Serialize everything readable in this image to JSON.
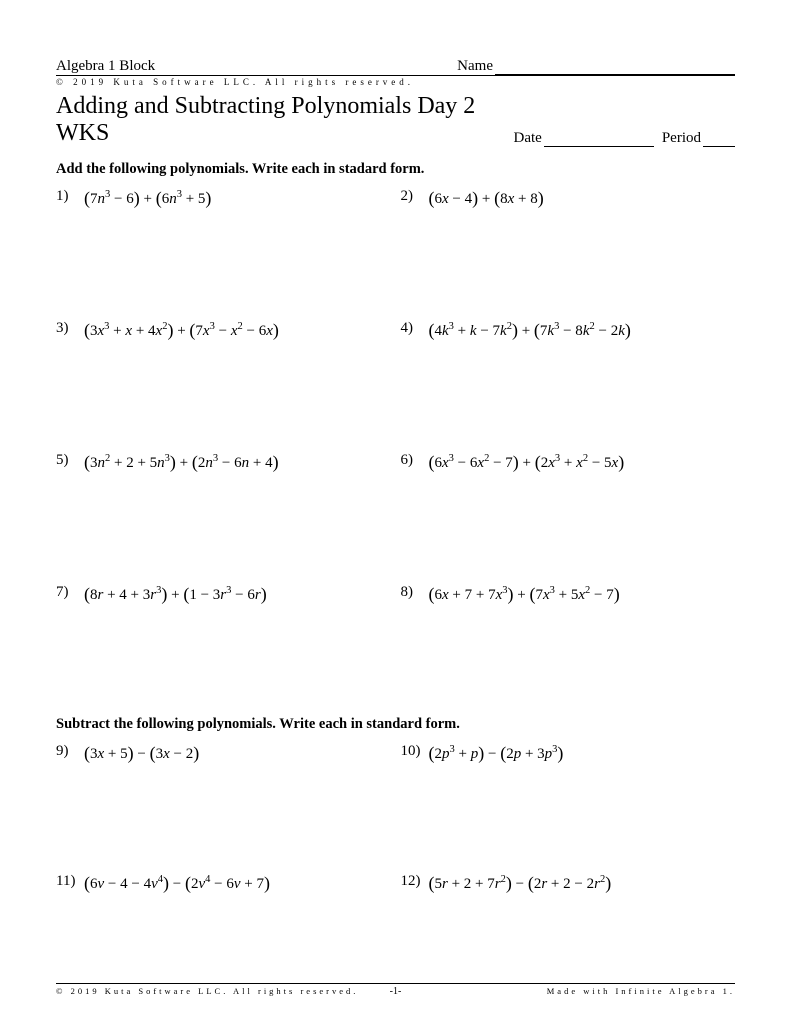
{
  "header": {
    "course": "Algebra 1 Block",
    "name_label": "Name",
    "copyright_top": "©  2019  Kuta  Software  LLC.   All  rights  reserved."
  },
  "title_row": {
    "title": "Adding and Subtracting Polynomials Day 2 WKS",
    "date_label": "Date",
    "period_label": "Period"
  },
  "section1": {
    "instructions": "Add the following polynomials.  Write each in stadard form.",
    "problems": [
      {
        "num": "1)",
        "html": "<span class='paren'>(</span>7<span class='itl'>n</span><sup>3</sup> − 6<span class='paren'>)</span> + <span class='paren'>(</span>6<span class='itl'>n</span><sup>3</sup> + 5<span class='paren'>)</span>"
      },
      {
        "num": "2)",
        "html": "<span class='paren'>(</span>6<span class='itl'>x</span> − 4<span class='paren'>)</span> + <span class='paren'>(</span>8<span class='itl'>x</span> + 8<span class='paren'>)</span>"
      },
      {
        "num": "3)",
        "html": "<span class='paren'>(</span>3<span class='itl'>x</span><sup>3</sup> + <span class='itl'>x</span> + 4<span class='itl'>x</span><sup>2</sup><span class='paren'>)</span> + <span class='paren'>(</span>7<span class='itl'>x</span><sup>3</sup> − <span class='itl'>x</span><sup>2</sup> − 6<span class='itl'>x</span><span class='paren'>)</span>"
      },
      {
        "num": "4)",
        "html": "<span class='paren'>(</span>4<span class='itl'>k</span><sup>3</sup> + <span class='itl'>k</span> − 7<span class='itl'>k</span><sup>2</sup><span class='paren'>)</span> + <span class='paren'>(</span>7<span class='itl'>k</span><sup>3</sup> − 8<span class='itl'>k</span><sup>2</sup> − 2<span class='itl'>k</span><span class='paren'>)</span>"
      },
      {
        "num": "5)",
        "html": "<span class='paren'>(</span>3<span class='itl'>n</span><sup>2</sup> + 2 + 5<span class='itl'>n</span><sup>3</sup><span class='paren'>)</span> + <span class='paren'>(</span>2<span class='itl'>n</span><sup>3</sup> − 6<span class='itl'>n</span> + 4<span class='paren'>)</span>"
      },
      {
        "num": "6)",
        "html": "<span class='paren'>(</span>6<span class='itl'>x</span><sup>3</sup> − 6<span class='itl'>x</span><sup>2</sup> − 7<span class='paren'>)</span> + <span class='paren'>(</span>2<span class='itl'>x</span><sup>3</sup> + <span class='itl'>x</span><sup>2</sup> − 5<span class='itl'>x</span><span class='paren'>)</span>"
      },
      {
        "num": "7)",
        "html": "<span class='paren'>(</span>8<span class='itl'>r</span> + 4 + 3<span class='itl'>r</span><sup>3</sup><span class='paren'>)</span> + <span class='paren'>(</span>1 − 3<span class='itl'>r</span><sup>3</sup> − 6<span class='itl'>r</span><span class='paren'>)</span>"
      },
      {
        "num": "8)",
        "html": "<span class='paren'>(</span>6<span class='itl'>x</span> + 7 + 7<span class='itl'>x</span><sup>3</sup><span class='paren'>)</span> + <span class='paren'>(</span>7<span class='itl'>x</span><sup>3</sup> + 5<span class='itl'>x</span><sup>2</sup> − 7<span class='paren'>)</span>"
      }
    ]
  },
  "section2": {
    "instructions": "Subtract the following polynomials. Write each in standard form.",
    "problems": [
      {
        "num": "9)",
        "html": "<span class='paren'>(</span>3<span class='itl'>x</span> + 5<span class='paren'>)</span> − <span class='paren'>(</span>3<span class='itl'>x</span> − 2<span class='paren'>)</span>"
      },
      {
        "num": "10)",
        "html": "<span class='paren'>(</span>2<span class='itl'>p</span><sup>3</sup> + <span class='itl'>p</span><span class='paren'>)</span> − <span class='paren'>(</span>2<span class='itl'>p</span> + 3<span class='itl'>p</span><sup>3</sup><span class='paren'>)</span>"
      },
      {
        "num": "11)",
        "html": "<span class='paren'>(</span>6<span class='itl'>v</span> − 4 − 4<span class='itl'>v</span><sup>4</sup><span class='paren'>)</span> − <span class='paren'>(</span>2<span class='itl'>v</span><sup>4</sup> − 6<span class='itl'>v</span> + 7<span class='paren'>)</span>"
      },
      {
        "num": "12)",
        "html": "<span class='paren'>(</span>5<span class='itl'>r</span> + 2 + 7<span class='itl'>r</span><sup>2</sup><span class='paren'>)</span> − <span class='paren'>(</span>2<span class='itl'>r</span> + 2 − 2<span class='itl'>r</span><sup>2</sup><span class='paren'>)</span>"
      }
    ]
  },
  "footer": {
    "left": "©  2019  Kuta  Software   LLC.   All  rights  reserved.",
    "page": "-1-",
    "right": "Made  with  Infinite  Algebra  1."
  }
}
